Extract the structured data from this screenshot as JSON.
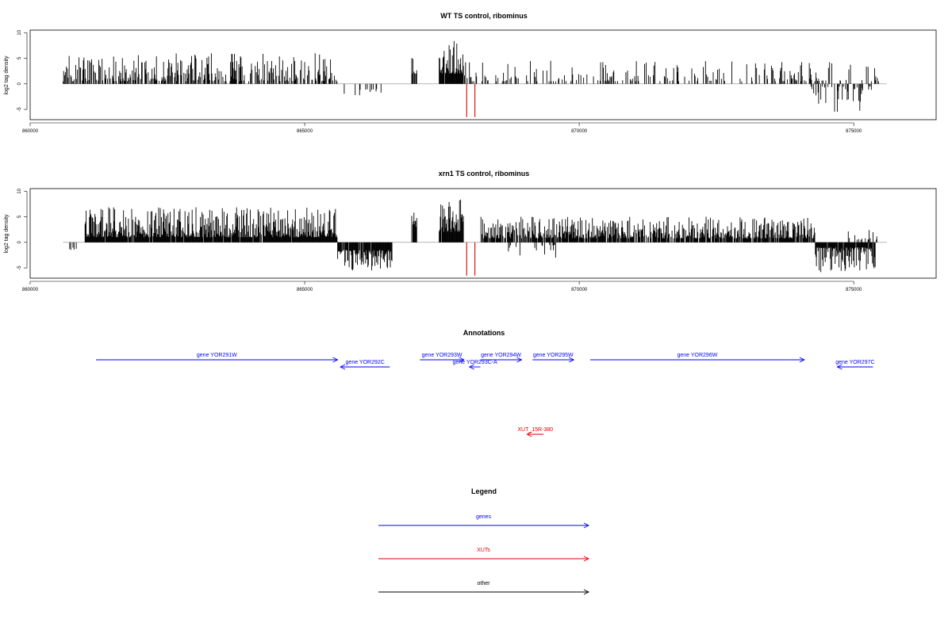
{
  "chart_data": [
    {
      "type": "bar",
      "title": "WT TS control, ribominus",
      "ylabel": "log2 tag density",
      "xlim": [
        860000,
        876500
      ],
      "ylim": [
        -7,
        10.5
      ],
      "xticks": [
        860000,
        865000,
        870000,
        875000
      ],
      "xtick_labels": [
        "860000",
        "865000",
        "870000",
        "875000"
      ],
      "yticks": [
        -5,
        0,
        5,
        10
      ],
      "ytick_labels": [
        "-5",
        "0",
        "5",
        "10"
      ],
      "colors": {
        "bars": "#000000",
        "highlight": "#dd0000",
        "baseline": "#888888"
      },
      "regions": [
        {
          "start": 860600,
          "end": 865600,
          "strand": "+",
          "density": 0.55,
          "min": 0.5,
          "max": 6
        },
        {
          "start": 865600,
          "end": 866600,
          "strand": "-",
          "density": 0.18,
          "min": 1,
          "max": 3.5
        },
        {
          "start": 866950,
          "end": 867050,
          "strand": "+",
          "density": 0.9,
          "min": 2,
          "max": 5.5
        },
        {
          "start": 867450,
          "end": 867900,
          "strand": "+",
          "density": 0.95,
          "min": 2,
          "max": 9
        },
        {
          "start": 867900,
          "end": 875500,
          "strand": "+",
          "density": 0.25,
          "min": 0.5,
          "max": 4.5
        },
        {
          "start": 874200,
          "end": 875400,
          "strand": "-",
          "density": 0.35,
          "min": 0.5,
          "max": 5.5
        }
      ],
      "highlight_bars": [
        {
          "x": 867950,
          "y": -6.5
        },
        {
          "x": 868100,
          "y": -6.5
        }
      ]
    },
    {
      "type": "bar",
      "title": "xrn1 TS control, ribominus",
      "ylabel": "log2 tag density",
      "xlim": [
        860000,
        876500
      ],
      "ylim": [
        -7,
        10.5
      ],
      "xticks": [
        860000,
        865000,
        870000,
        875000
      ],
      "xtick_labels": [
        "860000",
        "865000",
        "870000",
        "875000"
      ],
      "yticks": [
        -5,
        0,
        5,
        10
      ],
      "ytick_labels": [
        "-5",
        "0",
        "5",
        "10"
      ],
      "colors": {
        "bars": "#000000",
        "highlight": "#dd0000",
        "baseline": "#888888"
      },
      "regions": [
        {
          "start": 860700,
          "end": 860950,
          "strand": "-",
          "density": 0.3,
          "min": 1,
          "max": 2
        },
        {
          "start": 861000,
          "end": 865600,
          "strand": "+",
          "density": 0.97,
          "min": 1,
          "max": 7
        },
        {
          "start": 865600,
          "end": 866600,
          "strand": "-",
          "density": 0.95,
          "min": 1.5,
          "max": 5.5
        },
        {
          "start": 866950,
          "end": 867050,
          "strand": "+",
          "density": 0.95,
          "min": 3,
          "max": 6
        },
        {
          "start": 867450,
          "end": 867900,
          "strand": "+",
          "density": 0.97,
          "min": 2,
          "max": 9.5
        },
        {
          "start": 868200,
          "end": 874300,
          "strand": "+",
          "density": 0.8,
          "min": 0.8,
          "max": 5
        },
        {
          "start": 868700,
          "end": 869600,
          "strand": "-",
          "density": 0.2,
          "min": 0.5,
          "max": 3
        },
        {
          "start": 874300,
          "end": 875400,
          "strand": "-",
          "density": 0.9,
          "min": 1,
          "max": 6
        },
        {
          "start": 874900,
          "end": 875450,
          "strand": "+",
          "density": 0.3,
          "min": 0.5,
          "max": 2.5
        }
      ],
      "highlight_bars": [
        {
          "x": 867950,
          "y": -6.5
        },
        {
          "x": 868100,
          "y": -6.5
        }
      ]
    }
  ],
  "annotations": {
    "title": "Annotations",
    "xlim": [
      860000,
      876500
    ],
    "features": [
      {
        "label": "gene YOR291W",
        "start": 861200,
        "end": 865600,
        "strand": "+",
        "row": 0,
        "color": "#0000ff"
      },
      {
        "label": "gene YOR292C",
        "start": 865650,
        "end": 866550,
        "strand": "-",
        "row": 1,
        "color": "#0000ff"
      },
      {
        "label": "gene YOR293W",
        "start": 867100,
        "end": 867900,
        "strand": "+",
        "row": 0,
        "color": "#0000ff"
      },
      {
        "label": "gene YOR293C-A",
        "start": 868000,
        "end": 868200,
        "strand": "-",
        "row": 1,
        "color": "#0000ff"
      },
      {
        "label": "gene YOR294W",
        "start": 868200,
        "end": 868950,
        "strand": "+",
        "row": 0,
        "color": "#0000ff"
      },
      {
        "label": "gene YOR295W",
        "start": 869150,
        "end": 869900,
        "strand": "+",
        "row": 0,
        "color": "#0000ff"
      },
      {
        "label": "gene YOR296W",
        "start": 870200,
        "end": 874100,
        "strand": "+",
        "row": 0,
        "color": "#0000ff"
      },
      {
        "label": "gene YOR297C",
        "start": 874700,
        "end": 875350,
        "strand": "-",
        "row": 1,
        "color": "#0000ff"
      },
      {
        "label": "XUT_15R-380",
        "start": 869050,
        "end": 869350,
        "strand": "-",
        "row": 2,
        "color": "#dd0000"
      }
    ]
  },
  "legend": {
    "title": "Legend",
    "items": [
      {
        "label": "genes",
        "color": "#0000ff"
      },
      {
        "label": "XUTs",
        "color": "#dd0000"
      },
      {
        "label": "other",
        "color": "#000000"
      }
    ]
  }
}
